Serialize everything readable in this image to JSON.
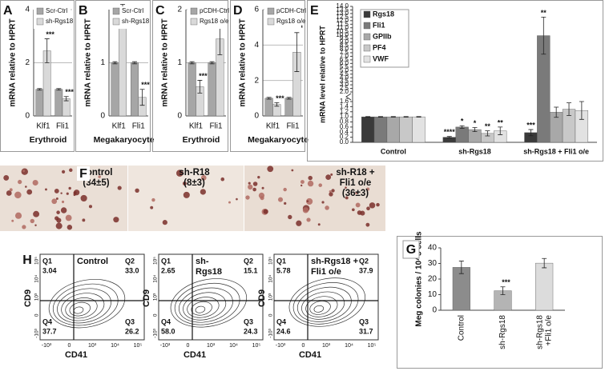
{
  "chart_data": [
    {
      "type": "bar",
      "panel_label": "A",
      "y_label": "mRNA relative to HPRT",
      "x_label": "Erythroid",
      "categories": [
        "Klf1",
        "Fli1"
      ],
      "ylim": [
        0,
        4
      ],
      "yticks": [
        0,
        2,
        4
      ],
      "grid": true,
      "legend": "upper right",
      "series": [
        {
          "name": "Scr-Ctrl",
          "color": "#a6a6a6",
          "values": [
            1,
            1
          ],
          "errors": [
            0.03,
            0.03
          ]
        },
        {
          "name": "sh-Rgs18",
          "color": "#d9d9d9",
          "values": [
            2.45,
            0.65
          ],
          "errors": [
            0.45,
            0.08
          ],
          "significance": [
            "***",
            "***"
          ]
        }
      ]
    },
    {
      "type": "bar",
      "panel_label": "B",
      "y_label": "mRNA relative to HPRT",
      "x_label": "Megakaryocyte",
      "categories": [
        "Klf1",
        "Fli1"
      ],
      "ylim": [
        0,
        2
      ],
      "yticks": [
        0,
        1
      ],
      "grid": true,
      "legend": "upper right",
      "series": [
        {
          "name": "Scr-Ctrl",
          "color": "#a6a6a6",
          "values": [
            1,
            1
          ],
          "errors": [
            0.02,
            0.02
          ]
        },
        {
          "name": "sh-Rgs18",
          "color": "#d9d9d9",
          "values": [
            1.9,
            0.35
          ],
          "errors": [
            0.2,
            0.15
          ],
          "significance": [
            "**",
            "***"
          ]
        }
      ]
    },
    {
      "type": "bar",
      "panel_label": "C",
      "y_label": "mRNA relative to HPRT",
      "x_label": "Erythroid",
      "categories": [
        "Klf1",
        "Fli1"
      ],
      "ylim": [
        0,
        2
      ],
      "yticks": [
        0,
        1,
        2
      ],
      "grid": true,
      "legend": "upper right",
      "series": [
        {
          "name": "pCDH-Ctrl",
          "color": "#a6a6a6",
          "values": [
            1,
            1
          ],
          "errors": [
            0.02,
            0.02
          ]
        },
        {
          "name": "Rgs18 o/e",
          "color": "#d9d9d9",
          "values": [
            0.55,
            1.45
          ],
          "errors": [
            0.12,
            0.3
          ],
          "significance": [
            "***",
            "*"
          ]
        }
      ]
    },
    {
      "type": "bar",
      "panel_label": "D",
      "y_label": "mRNA relative to HPRT",
      "x_label": "Megakaryocyte",
      "categories": [
        "Klf1",
        "Fli1"
      ],
      "ylim": [
        0,
        6
      ],
      "yticks": [
        0,
        2,
        4,
        6
      ],
      "grid": true,
      "legend": "upper right",
      "series": [
        {
          "name": "pCDH-Ctrl",
          "color": "#a6a6a6",
          "values": [
            1,
            1
          ],
          "errors": [
            0.05,
            0.05
          ]
        },
        {
          "name": "Rgs18 o/e",
          "color": "#d9d9d9",
          "values": [
            0.65,
            3.6
          ],
          "errors": [
            0.1,
            1.1
          ],
          "significance": [
            "***",
            "**"
          ]
        }
      ]
    },
    {
      "type": "bar",
      "panel_label": "E",
      "y_label": "mRNA level relative to HPRT",
      "categories": [
        "Control",
        "sh-Rgs18",
        "sh-Rgs18 + Fli1 o/e"
      ],
      "ylim": [
        0,
        14
      ],
      "ybreak": [
        1.6,
        2.0
      ],
      "grid": false,
      "legend": "upper left",
      "yticks": [
        {
          "value": 0,
          "label": "0.0"
        },
        {
          "value": 0.2,
          "label": "0.2"
        },
        {
          "value": 0.4,
          "label": "0.4"
        },
        {
          "value": 0.6,
          "label": "0.6"
        },
        {
          "value": 0.8,
          "label": "0.8"
        },
        {
          "value": 1,
          "label": "1.0"
        },
        {
          "value": 1.2,
          "label": "1.2"
        },
        {
          "value": 1.4,
          "label": "1.4"
        },
        {
          "value": 1.6,
          "label": "1.6"
        },
        {
          "value": 2,
          "label": "2.0"
        },
        {
          "value": 2.5,
          "label": "2.5"
        },
        {
          "value": 3,
          "label": "3.0"
        },
        {
          "value": 3.5,
          "label": "3.5"
        },
        {
          "value": 4,
          "label": "4.0"
        },
        {
          "value": 4.5,
          "label": "4.5"
        },
        {
          "value": 5,
          "label": "5.0"
        },
        {
          "value": 5.5,
          "label": "5.5"
        },
        {
          "value": 6,
          "label": "6.0"
        },
        {
          "value": 6.5,
          "label": "6.5"
        },
        {
          "value": 7,
          "label": "7.0"
        },
        {
          "value": 7.5,
          "label": "7.5"
        },
        {
          "value": 8,
          "label": "8.0"
        },
        {
          "value": 8.5,
          "label": "8.5"
        },
        {
          "value": 9,
          "label": "9.0"
        },
        {
          "value": 9.5,
          "label": "9.5"
        },
        {
          "value": 10,
          "label": "10.0"
        },
        {
          "value": 10.5,
          "label": "10.5"
        },
        {
          "value": 11,
          "label": "11.0"
        },
        {
          "value": 11.5,
          "label": "11.5"
        },
        {
          "value": 12,
          "label": "12.0"
        },
        {
          "value": 12.5,
          "label": "12.5"
        },
        {
          "value": 13,
          "label": "13.0"
        },
        {
          "value": 13.5,
          "label": "13.5"
        },
        {
          "value": 14,
          "label": "14.0"
        }
      ],
      "series": [
        {
          "name": "Rgs18",
          "color": "#3a3a3a",
          "values": [
            1,
            0.2,
            0.38
          ],
          "errors": [
            0.01,
            0.03,
            0.12
          ],
          "significance": [
            null,
            "****",
            "***"
          ]
        },
        {
          "name": "Fli1",
          "color": "#7a7a7a",
          "values": [
            1,
            0.6,
            9.9
          ],
          "errors": [
            0.01,
            0.05,
            2.6
          ],
          "significance": [
            null,
            "*",
            "**"
          ]
        },
        {
          "name": "GPIIb",
          "color": "#a8a8a8",
          "values": [
            1,
            0.5,
            1.18
          ],
          "errors": [
            0.01,
            0.08,
            0.2
          ],
          "significance": [
            null,
            "*",
            null
          ]
        },
        {
          "name": "PF4",
          "color": "#c8c8c8",
          "values": [
            1,
            0.35,
            1.3
          ],
          "errors": [
            0.01,
            0.1,
            0.25
          ],
          "significance": [
            null,
            "**",
            null
          ]
        },
        {
          "name": "VWF",
          "color": "#e2e2e2",
          "values": [
            1,
            0.45,
            1.25
          ],
          "errors": [
            0.01,
            0.15,
            0.35
          ],
          "significance": [
            null,
            "**",
            null
          ]
        }
      ]
    },
    {
      "type": "bar",
      "panel_label": "G",
      "y_label": "Meg colonies / 10^5 cells",
      "categories": [
        "Control",
        "sh-Rgs18",
        [
          "sh-Rgs18",
          "+Fli1 o/e"
        ]
      ],
      "values": [
        27.5,
        12.5,
        30.2
      ],
      "errors": [
        4,
        2.5,
        3
      ],
      "significance": [
        null,
        "***",
        null
      ],
      "colors": [
        "#8c8c8c",
        "#b4b4b4",
        "#dcdcdc"
      ],
      "ylim": [
        0,
        40
      ],
      "yticks": [
        0,
        10,
        20,
        30,
        40
      ],
      "grid": false
    }
  ],
  "colony_images": {
    "panel_label": "F",
    "panels": [
      {
        "lines": [
          "Control",
          "(34±5)"
        ]
      },
      {
        "lines": [
          "sh-R18",
          "(8±3)"
        ]
      },
      {
        "lines": [
          "sh-R18 +",
          "Fli1 o/e",
          "(36±3)"
        ]
      }
    ]
  },
  "flow_plots": {
    "panel_label": "H",
    "x_label": "CD41",
    "y_label": "CD9",
    "ticks": [
      "-10³",
      "0",
      "10³",
      "10⁴",
      "10⁵"
    ],
    "plots": [
      {
        "title": [
          "Control"
        ],
        "quadrants": [
          {
            "name": "Q1",
            "value": "3.04"
          },
          {
            "name": "Q2",
            "value": "33.0"
          },
          {
            "name": "Q3",
            "value": "26.2"
          },
          {
            "name": "Q4",
            "value": "37.7"
          }
        ]
      },
      {
        "title": [
          "sh-",
          "Rgs18"
        ],
        "quadrants": [
          {
            "name": "Q1",
            "value": "2.65"
          },
          {
            "name": "Q2",
            "value": "15.1"
          },
          {
            "name": "Q3",
            "value": "24.3"
          },
          {
            "name": "Q4",
            "value": "58.0"
          }
        ]
      },
      {
        "title": [
          "sh-Rgs18 +",
          "Fli1 o/e"
        ],
        "quadrants": [
          {
            "name": "Q1",
            "value": "5.78"
          },
          {
            "name": "Q2",
            "value": "37.9"
          },
          {
            "name": "Q3",
            "value": "31.7"
          },
          {
            "name": "Q4",
            "value": "24.6"
          }
        ]
      }
    ]
  }
}
